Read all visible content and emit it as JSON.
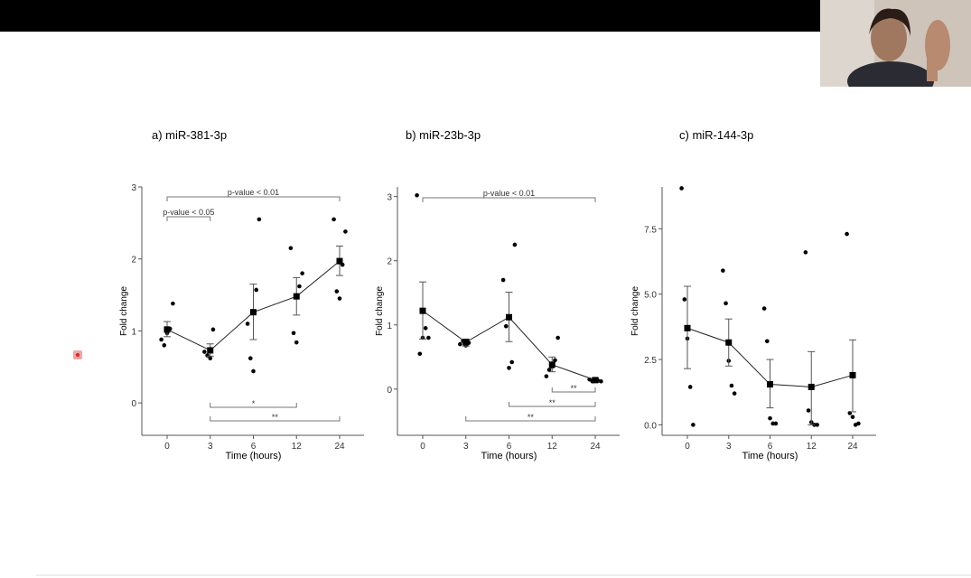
{
  "colors": {
    "topbar": "#000000",
    "ink": "#000000",
    "axis": "#555555",
    "bracket": "#777777",
    "pointer": "#e06060"
  },
  "webcam": {
    "icon": "presenter-video-feed"
  },
  "chart_data": [
    {
      "type": "line",
      "title": "a) miR-381-3p",
      "xlabel": "Time (hours)",
      "ylabel": "Fold change",
      "x": [
        0,
        3,
        6,
        12,
        24
      ],
      "x_ticks": [
        "0",
        "3",
        "6",
        "12",
        "24"
      ],
      "ylim": [
        -0.45,
        3.0
      ],
      "y_ticks": [
        0,
        1,
        2,
        3
      ],
      "y_tick_labels": [
        "0",
        "1",
        "2",
        "3"
      ],
      "mean": [
        1.02,
        0.73,
        1.26,
        1.48,
        1.97
      ],
      "error_low": [
        0.92,
        0.65,
        0.88,
        1.22,
        1.77
      ],
      "error_high": [
        1.13,
        0.82,
        1.65,
        1.74,
        2.18
      ],
      "points": [
        [
          0,
          0.88
        ],
        [
          0,
          0.8
        ],
        [
          0,
          0.97
        ],
        [
          0,
          1.03
        ],
        [
          0,
          1.38
        ],
        [
          3,
          0.71
        ],
        [
          3,
          0.66
        ],
        [
          3,
          0.62
        ],
        [
          3,
          1.02
        ],
        [
          6,
          2.55
        ],
        [
          6,
          1.1
        ],
        [
          6,
          0.62
        ],
        [
          6,
          0.44
        ],
        [
          6,
          1.57
        ],
        [
          12,
          1.8
        ],
        [
          12,
          2.15
        ],
        [
          12,
          0.97
        ],
        [
          12,
          0.84
        ],
        [
          12,
          1.62
        ],
        [
          24,
          2.38
        ],
        [
          24,
          2.55
        ],
        [
          24,
          1.55
        ],
        [
          24,
          1.45
        ],
        [
          24,
          1.92
        ]
      ],
      "brackets": [
        {
          "x1": 0,
          "x2": 24,
          "label": "p-value < 0.01",
          "side": "top"
        },
        {
          "x1": 0,
          "x2": 3,
          "label": "p-value < 0.05",
          "side": "top"
        },
        {
          "x1": 3,
          "x2": 12,
          "label": "*",
          "side": "bottom"
        },
        {
          "x1": 3,
          "x2": 24,
          "label": "**",
          "side": "bottom"
        }
      ]
    },
    {
      "type": "line",
      "title": "b) miR-23b-3p",
      "xlabel": "Time (hours)",
      "ylabel": "Fold change",
      "x": [
        0,
        3,
        6,
        12,
        24
      ],
      "x_ticks": [
        "0",
        "3",
        "6",
        "12",
        "24"
      ],
      "ylim": [
        -0.72,
        3.15
      ],
      "y_ticks": [
        0,
        1,
        2,
        3
      ],
      "y_tick_labels": [
        "0",
        "1",
        "2",
        "3"
      ],
      "mean": [
        1.22,
        0.73,
        1.12,
        0.38,
        0.14
      ],
      "error_low": [
        0.78,
        0.67,
        0.74,
        0.27,
        0.11
      ],
      "error_high": [
        1.67,
        0.78,
        1.51,
        0.5,
        0.17
      ],
      "points": [
        [
          0,
          3.02
        ],
        [
          0,
          0.55
        ],
        [
          0,
          0.8
        ],
        [
          0,
          0.95
        ],
        [
          0,
          0.8
        ],
        [
          3,
          0.7
        ],
        [
          3,
          0.75
        ],
        [
          3,
          0.68
        ],
        [
          3,
          0.72
        ],
        [
          6,
          2.25
        ],
        [
          6,
          1.7
        ],
        [
          6,
          0.98
        ],
        [
          6,
          0.33
        ],
        [
          6,
          0.42
        ],
        [
          12,
          0.8
        ],
        [
          12,
          0.2
        ],
        [
          12,
          0.3
        ],
        [
          12,
          0.35
        ],
        [
          12,
          0.45
        ],
        [
          24,
          0.12
        ],
        [
          24,
          0.15
        ],
        [
          24,
          0.12
        ],
        [
          24,
          0.14
        ],
        [
          24,
          0.13
        ]
      ],
      "brackets": [
        {
          "x1": 0,
          "x2": 24,
          "label": "p-value < 0.01",
          "side": "top"
        },
        {
          "x1": 12,
          "x2": 24,
          "label": "**",
          "side": "bottom"
        },
        {
          "x1": 6,
          "x2": 24,
          "label": "**",
          "side": "bottom"
        },
        {
          "x1": 3,
          "x2": 24,
          "label": "**",
          "side": "bottom"
        }
      ]
    },
    {
      "type": "line",
      "title": "c) miR-144-3p",
      "xlabel": "Time (hours)",
      "ylabel": "Fold change",
      "x": [
        0,
        3,
        6,
        12,
        24
      ],
      "x_ticks": [
        "0",
        "3",
        "6",
        "12",
        "24"
      ],
      "ylim": [
        -0.4,
        9.1
      ],
      "y_ticks": [
        0,
        2.5,
        5,
        7.5
      ],
      "y_tick_labels": [
        "0.0",
        "2.5",
        "5.0",
        "7.5"
      ],
      "mean": [
        3.7,
        3.15,
        1.55,
        1.45,
        1.9
      ],
      "error_low": [
        2.15,
        2.25,
        0.65,
        0.0,
        0.5
      ],
      "error_high": [
        5.3,
        4.05,
        2.5,
        2.8,
        3.25
      ],
      "points": [
        [
          0,
          9.05
        ],
        [
          0,
          4.8
        ],
        [
          0,
          3.3
        ],
        [
          0,
          1.45
        ],
        [
          0,
          0.0
        ],
        [
          3,
          5.9
        ],
        [
          3,
          4.65
        ],
        [
          3,
          2.45
        ],
        [
          3,
          1.5
        ],
        [
          3,
          1.2
        ],
        [
          6,
          4.45
        ],
        [
          6,
          3.2
        ],
        [
          6,
          0.25
        ],
        [
          6,
          0.05
        ],
        [
          6,
          0.05
        ],
        [
          12,
          6.6
        ],
        [
          12,
          0.55
        ],
        [
          12,
          0.1
        ],
        [
          12,
          0.0
        ],
        [
          12,
          0.0
        ],
        [
          24,
          7.3
        ],
        [
          24,
          0.45
        ],
        [
          24,
          0.3
        ],
        [
          24,
          0.0
        ],
        [
          24,
          0.05
        ]
      ],
      "brackets": []
    }
  ]
}
